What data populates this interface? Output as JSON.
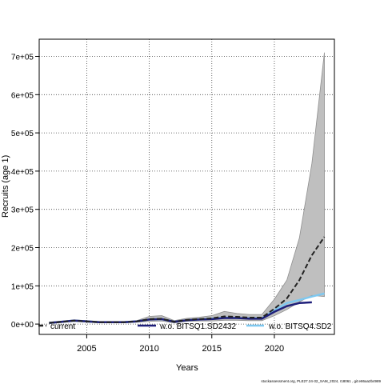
{
  "chart_data": {
    "type": "line",
    "xlabel": "Years",
    "ylabel": "Recruits (age 1)",
    "xlim": [
      2001.2,
      2024.8
    ],
    "ylim": [
      -27000,
      745000
    ],
    "x_ticks": [
      2005,
      2010,
      2015,
      2020
    ],
    "y_ticks": [
      0,
      100000,
      200000,
      300000,
      400000,
      500000,
      600000,
      700000
    ],
    "y_tick_labels": [
      "0e+00",
      "1e+05",
      "2e+05",
      "3e+05",
      "4e+05",
      "5e+05",
      "6e+05",
      "7e+05"
    ],
    "grid": true,
    "legend_position": "bottom",
    "series": [
      {
        "name": "current",
        "color": "#222222",
        "dash": "dashed",
        "x": [
          2002,
          2003,
          2004,
          2005,
          2006,
          2007,
          2008,
          2009,
          2010,
          2011,
          2012,
          2013,
          2014,
          2015,
          2016,
          2017,
          2018,
          2019,
          2020,
          2021,
          2022,
          2023,
          2024
        ],
        "values": [
          3000,
          6000,
          9000,
          7000,
          5000,
          5000,
          5000,
          7000,
          13000,
          14000,
          6000,
          11000,
          13000,
          15000,
          20000,
          19000,
          17000,
          17000,
          40000,
          67000,
          115000,
          180000,
          228000
        ],
        "band_upper": [
          5000,
          8000,
          11000,
          9000,
          7000,
          7000,
          7000,
          9000,
          20000,
          22000,
          9000,
          15000,
          18000,
          22000,
          33000,
          28000,
          25000,
          25000,
          65000,
          115000,
          225000,
          420000,
          710000
        ],
        "band_lower": [
          1000,
          4000,
          7000,
          5000,
          3000,
          3000,
          3000,
          5000,
          7000,
          8000,
          3000,
          7000,
          8000,
          8000,
          10000,
          10000,
          9000,
          9000,
          22000,
          38000,
          58000,
          75000,
          72000
        ]
      },
      {
        "name": "w.o. BITSQ1.SD2432",
        "color": "#1f1f7a",
        "dash": "solid",
        "x": [
          2002,
          2003,
          2004,
          2005,
          2006,
          2007,
          2008,
          2009,
          2010,
          2011,
          2012,
          2013,
          2014,
          2015,
          2016,
          2017,
          2018,
          2019,
          2020,
          2021,
          2022,
          2023
        ],
        "values": [
          3000,
          6000,
          9000,
          7000,
          5000,
          5000,
          5000,
          7000,
          12000,
          13000,
          6000,
          10000,
          12000,
          13000,
          16000,
          16000,
          14000,
          14000,
          32000,
          47000,
          55000,
          57000
        ]
      },
      {
        "name": "w.o. BITSQ4.SD2",
        "color": "#7ec8f0",
        "dash": "solid",
        "x": [
          2002,
          2003,
          2004,
          2005,
          2006,
          2007,
          2008,
          2009,
          2010,
          2011,
          2012,
          2013,
          2014,
          2015,
          2016,
          2017,
          2018,
          2019,
          2020,
          2021,
          2022,
          2023,
          2024
        ],
        "values": [
          3000,
          6000,
          9000,
          7000,
          5000,
          5000,
          5000,
          7000,
          12000,
          13000,
          6000,
          10000,
          12000,
          14000,
          17000,
          16000,
          15000,
          15000,
          36000,
          55000,
          63000,
          72000,
          80000
        ]
      }
    ]
  },
  "footer": "stockassessment.org, PLE27.24-32_SAM_2024, r18061 , git:e86aa2b4989"
}
